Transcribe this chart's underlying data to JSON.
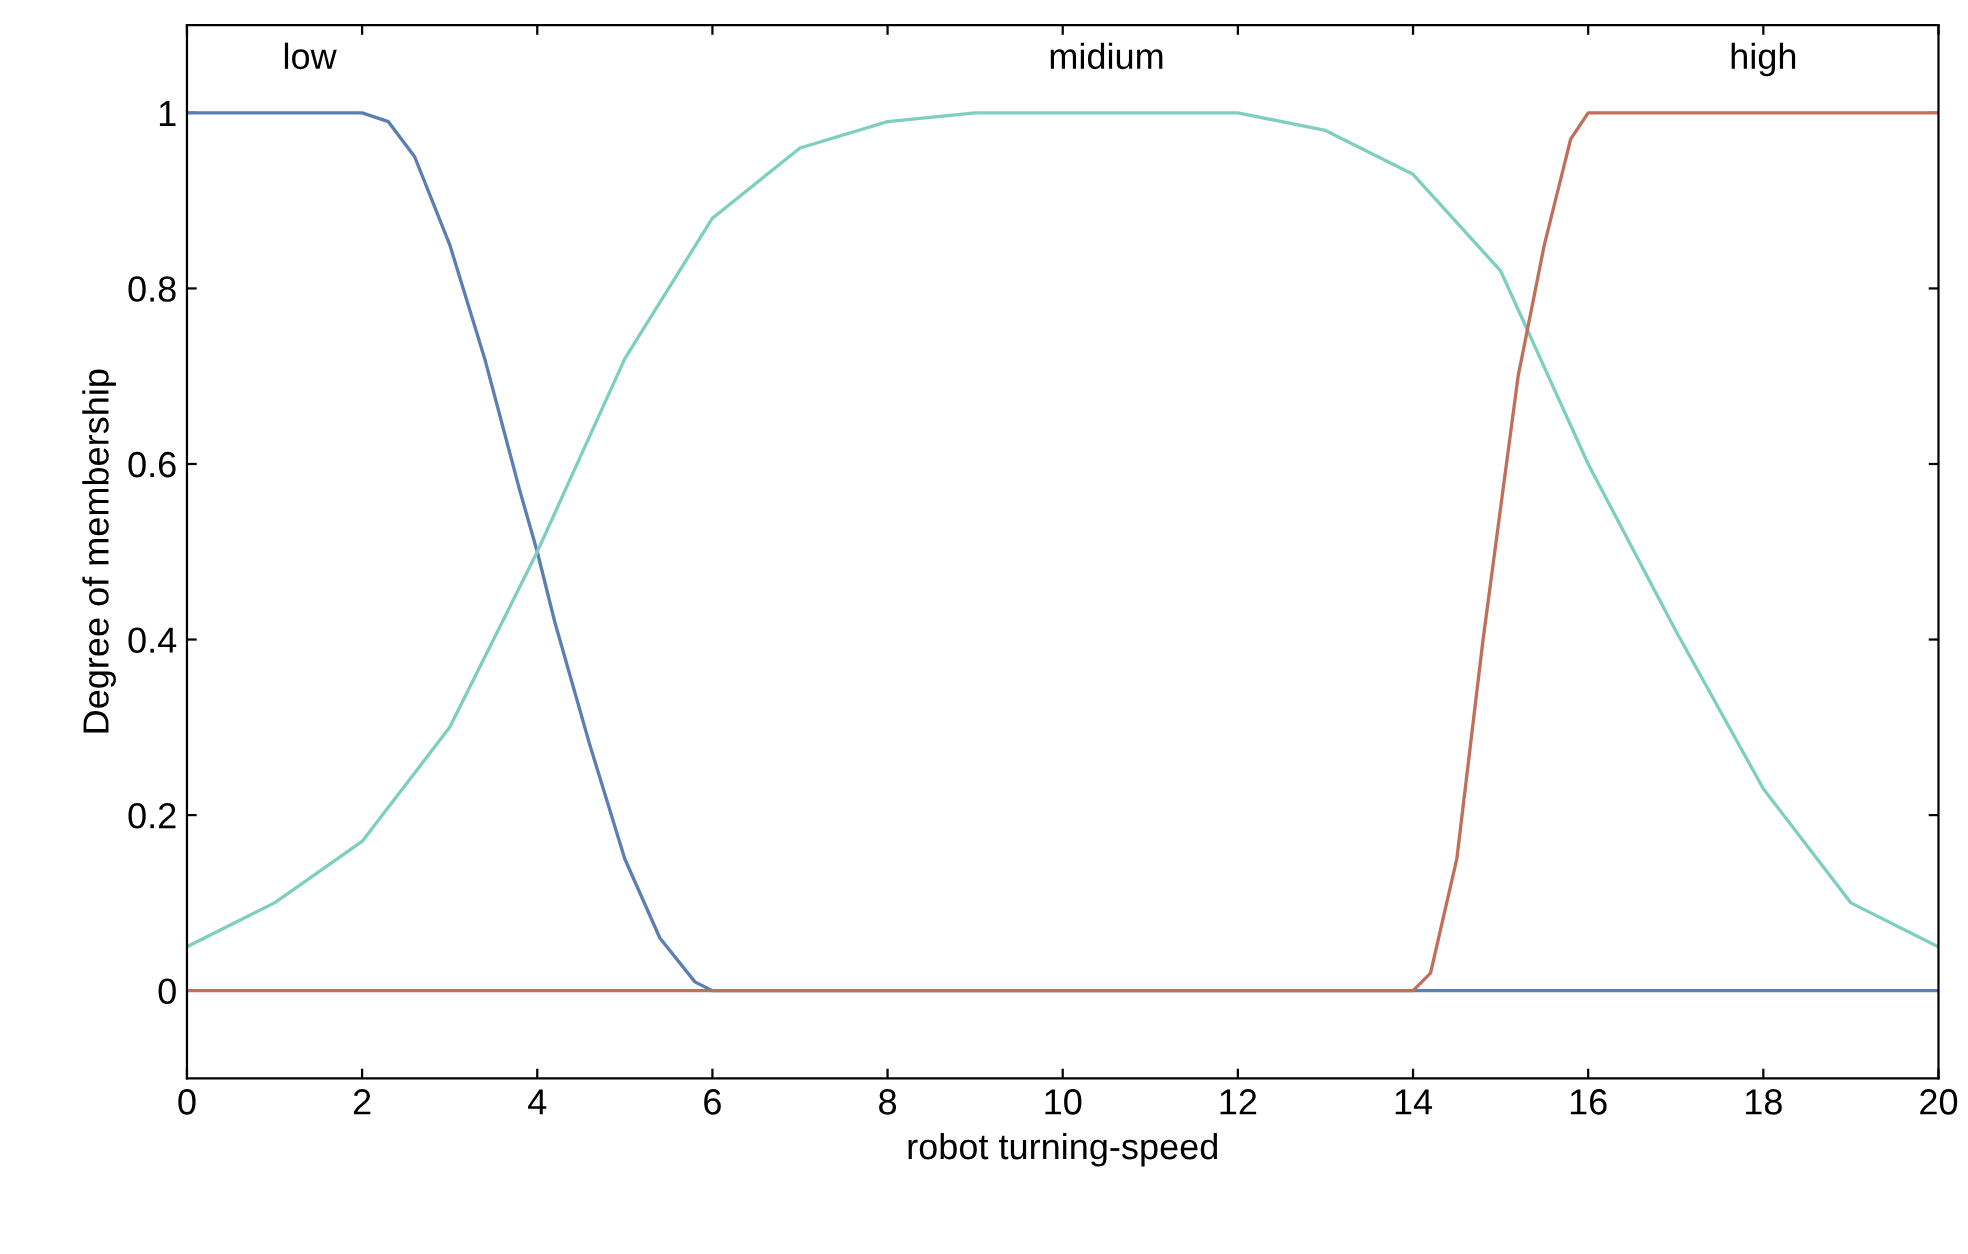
{
  "chart_data": {
    "type": "line",
    "xlabel": "robot turning-speed",
    "ylabel": "Degree of membership",
    "xlim": [
      0,
      20
    ],
    "ylim": [
      -0.1,
      1.1
    ],
    "xticks": [
      0,
      2,
      4,
      6,
      8,
      10,
      12,
      14,
      16,
      18,
      20
    ],
    "yticks": [
      0,
      0.2,
      0.4,
      0.6,
      0.8,
      1
    ],
    "grid": false,
    "marker": "none",
    "line_style": "solid",
    "series": [
      {
        "name": "low",
        "color": "#5b7fb3",
        "x": [
          0,
          2,
          2.3,
          2.6,
          3,
          3.4,
          3.8,
          4,
          4.2,
          4.6,
          5,
          5.4,
          5.8,
          6,
          20
        ],
        "values": [
          1,
          1,
          0.99,
          0.95,
          0.85,
          0.72,
          0.57,
          0.5,
          0.42,
          0.28,
          0.15,
          0.06,
          0.01,
          0,
          0
        ]
      },
      {
        "name": "midium",
        "color": "#7fcfc0",
        "x": [
          0,
          1,
          2,
          3,
          4,
          5,
          6,
          7,
          8,
          9,
          10,
          11,
          12,
          13,
          14,
          15,
          16,
          17,
          18,
          19,
          20
        ],
        "values": [
          0.05,
          0.1,
          0.17,
          0.3,
          0.5,
          0.72,
          0.88,
          0.96,
          0.99,
          1,
          1,
          1,
          1,
          0.98,
          0.93,
          0.82,
          0.6,
          0.41,
          0.23,
          0.1,
          0.05
        ]
      },
      {
        "name": "high",
        "color": "#c0705a",
        "x": [
          0,
          14,
          14.2,
          14.5,
          14.8,
          15,
          15.2,
          15.5,
          15.8,
          16,
          20
        ],
        "values": [
          0,
          0,
          0.02,
          0.15,
          0.4,
          0.55,
          0.7,
          0.85,
          0.97,
          1,
          1
        ]
      }
    ]
  }
}
